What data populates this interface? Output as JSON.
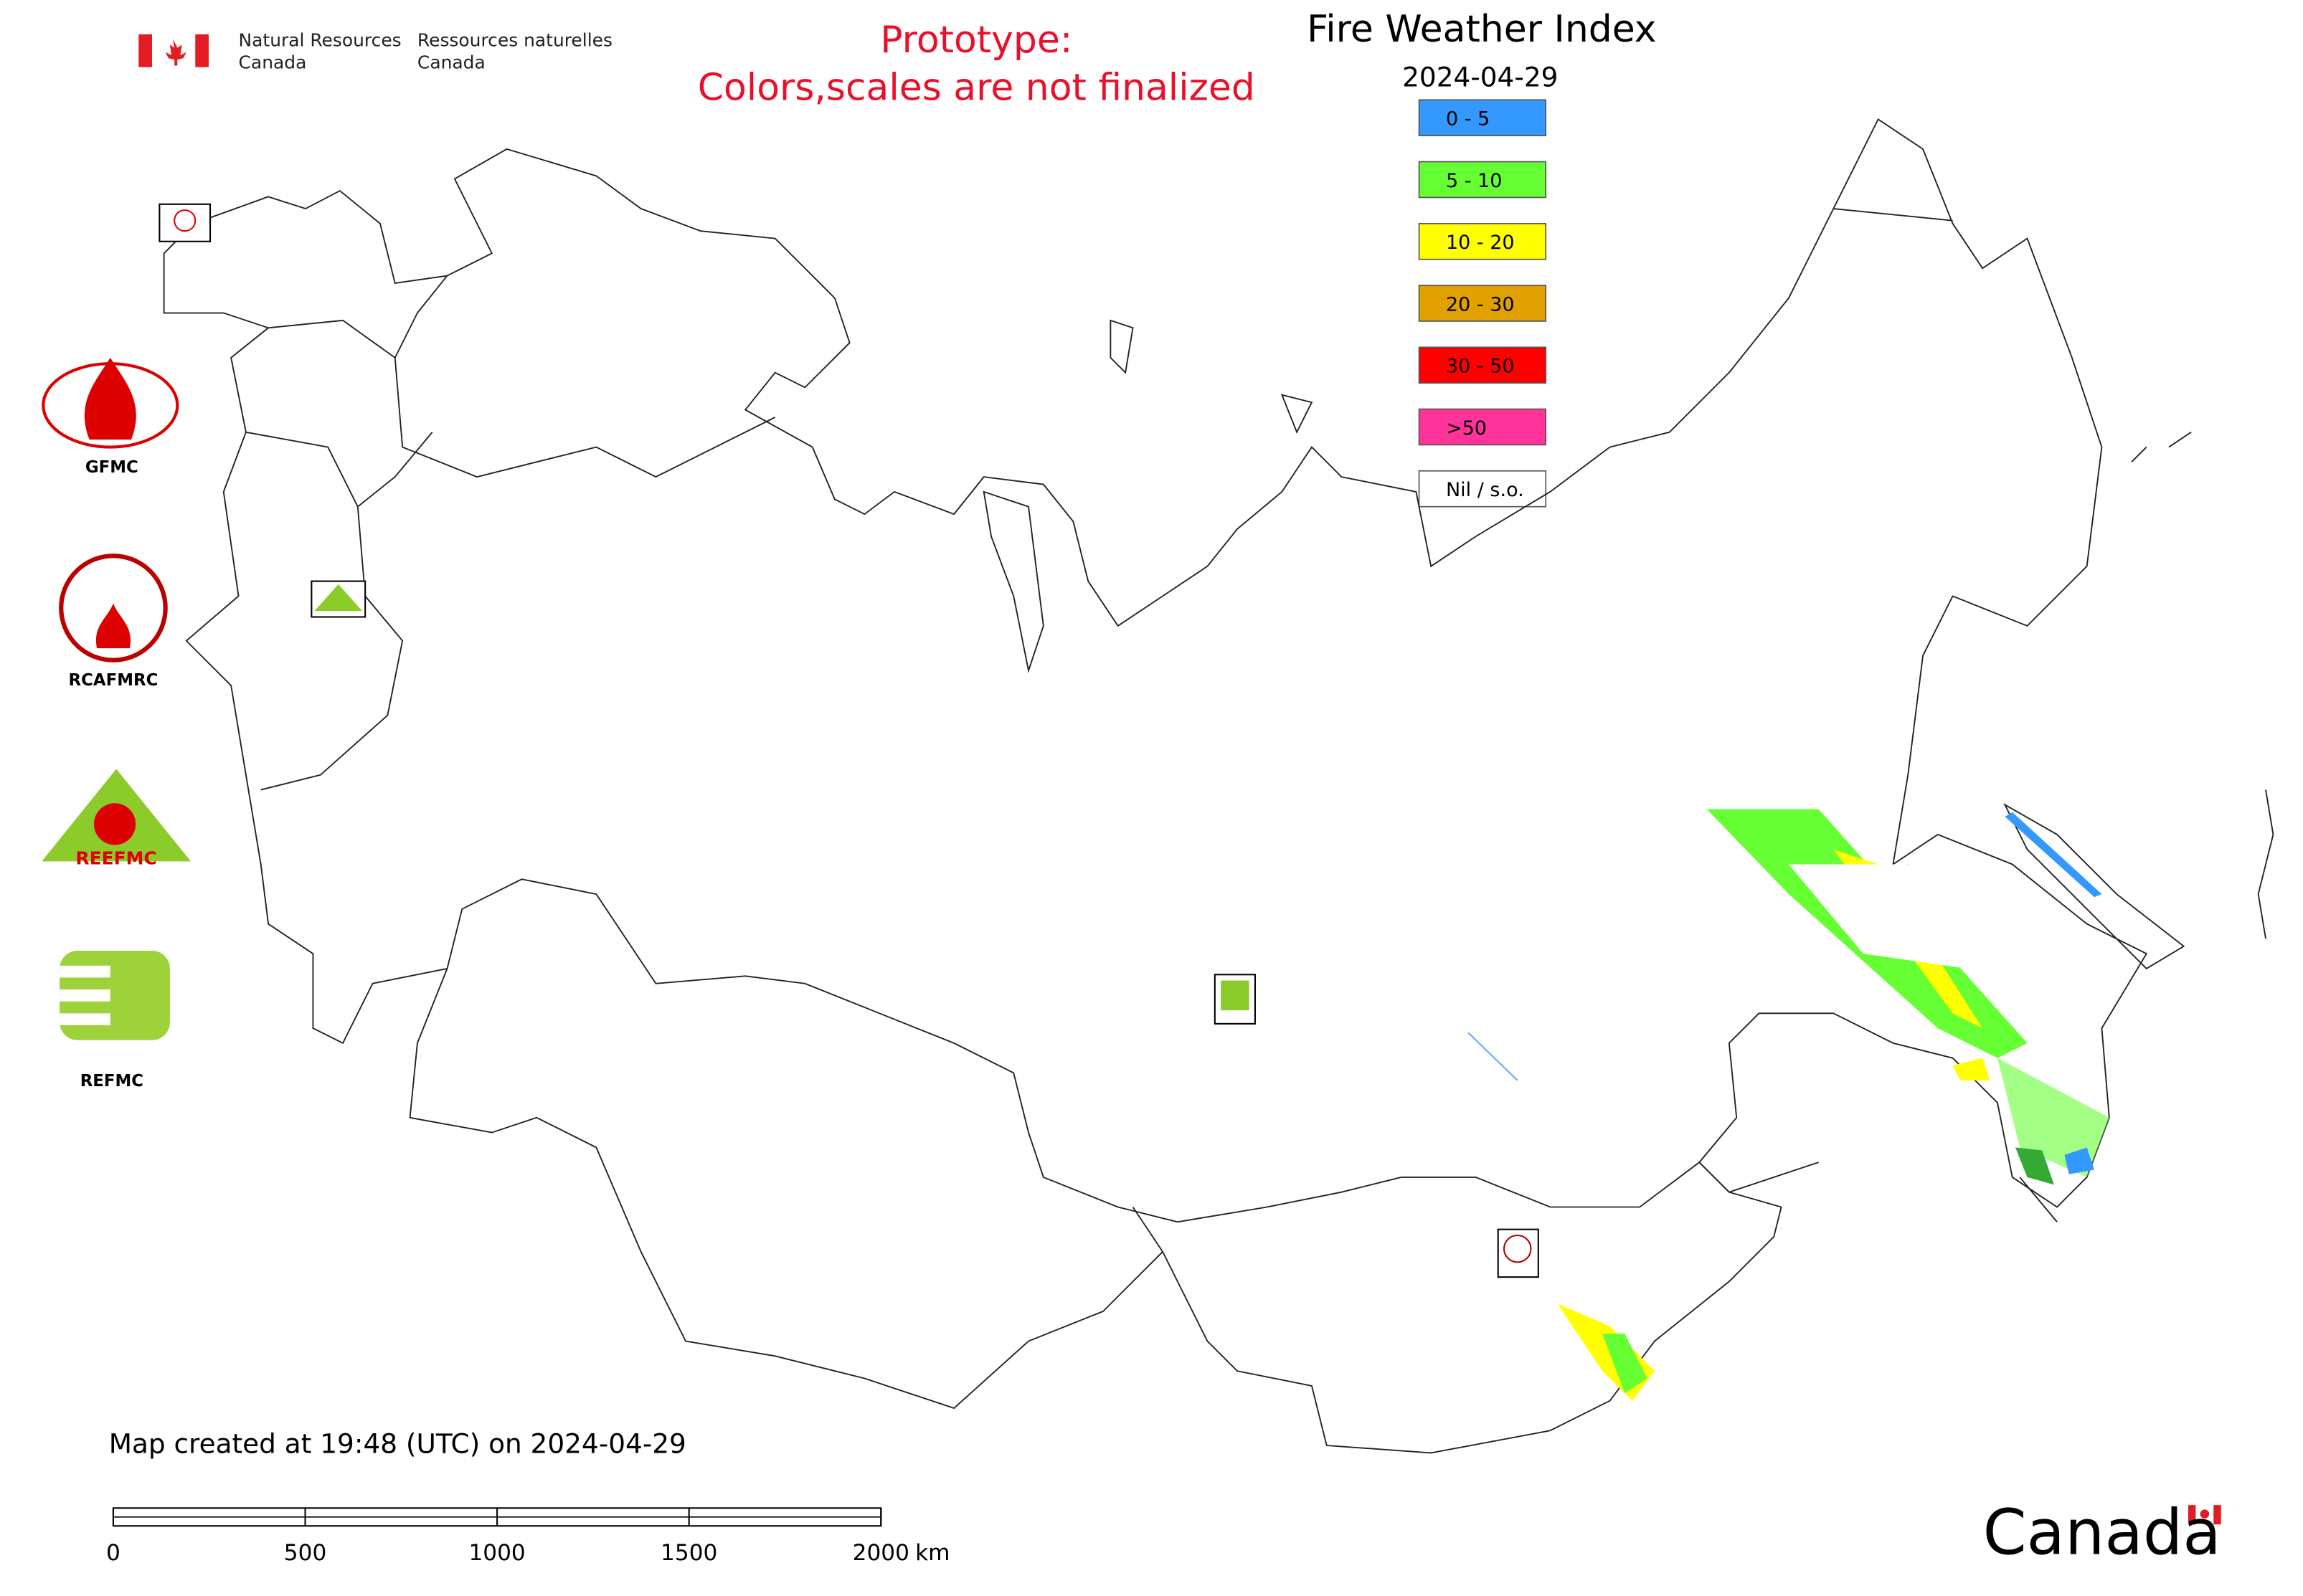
{
  "header": {
    "agency_en": [
      "Natural Resources",
      "Canada"
    ],
    "agency_fr": [
      "Ressources naturelles",
      "Canada"
    ],
    "notice": [
      "Prototype:",
      "Colors,scales are not finalized"
    ],
    "title": "Fire Weather Index",
    "date": "2024-04-29"
  },
  "legend": [
    {
      "label": "0 - 5",
      "color": "#3399ff"
    },
    {
      "label": "5 - 10",
      "color": "#66ff33"
    },
    {
      "label": "10 - 20",
      "color": "#ffff00"
    },
    {
      "label": "20 - 30",
      "color": "#e0a000"
    },
    {
      "label": "30 - 50",
      "color": "#ff0000"
    },
    {
      "label": ">50",
      "color": "#ff3399"
    },
    {
      "label": "Nil / s.o.",
      "color": "#ffffff"
    }
  ],
  "logos": [
    "GFMC",
    "RCAFMRC",
    "REEFMC",
    "REFMC"
  ],
  "footer": {
    "created": "Map created at 19:48 (UTC) on 2024-04-29",
    "wordmark": "Canada"
  },
  "scale_bar": {
    "ticks": [
      0,
      500,
      1000,
      1500,
      2000
    ],
    "unit": "km"
  }
}
